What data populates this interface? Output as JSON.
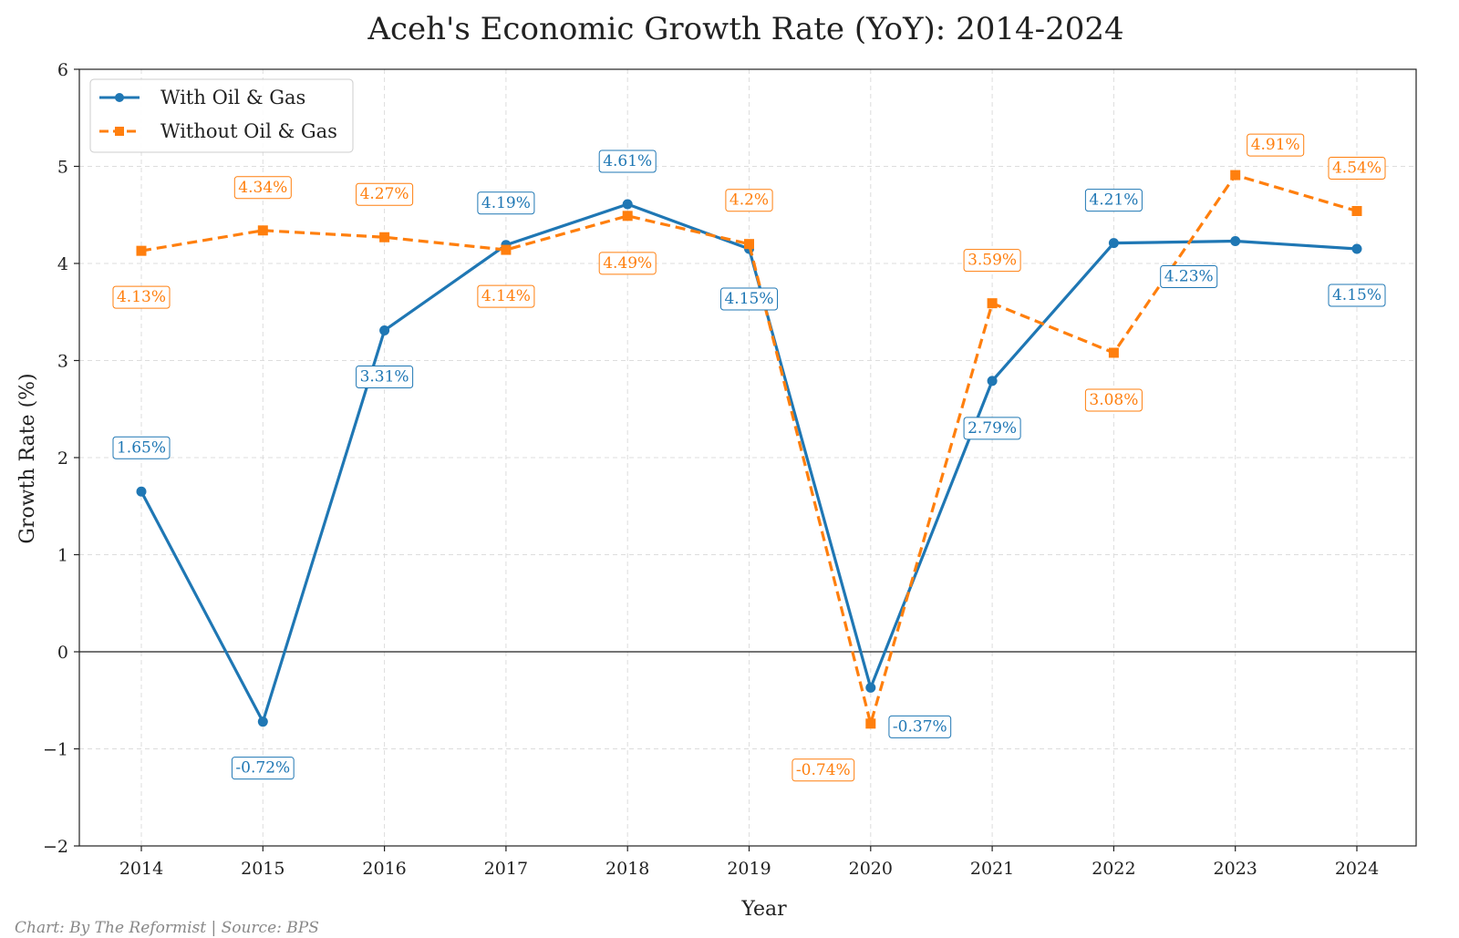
{
  "chart_data": {
    "type": "line",
    "title": "Aceh's Economic Growth Rate (YoY): 2014-2024",
    "xlabel": "Year",
    "ylabel": "Growth Rate (%)",
    "x": [
      "2014",
      "2015",
      "2016",
      "2017",
      "2018",
      "2019",
      "2020",
      "2021",
      "2022",
      "2023",
      "2024"
    ],
    "ylim": [
      -2,
      6
    ],
    "yticks": [
      -2,
      -1,
      0,
      1,
      2,
      3,
      4,
      5,
      6
    ],
    "ytick_labels": [
      "−2",
      "−1",
      "0",
      "1",
      "2",
      "3",
      "4",
      "5",
      "6"
    ],
    "grid": true,
    "legend_position": "top-left",
    "series": [
      {
        "name": "With Oil & Gas",
        "color": "#1f77b4",
        "style": "solid",
        "marker": "circle",
        "values": [
          1.65,
          -0.72,
          3.31,
          4.19,
          4.61,
          4.15,
          -0.37,
          2.79,
          4.21,
          4.23,
          4.15
        ],
        "labels": [
          "1.65%",
          "-0.72%",
          "3.31%",
          "4.19%",
          "4.61%",
          "4.15%",
          "-0.37%",
          "2.79%",
          "4.21%",
          "4.23%",
          "4.15%"
        ]
      },
      {
        "name": "Without Oil & Gas",
        "color": "#ff7f0e",
        "style": "dashed",
        "marker": "square",
        "values": [
          4.13,
          4.34,
          4.27,
          4.14,
          4.49,
          4.2,
          -0.74,
          3.59,
          3.08,
          4.91,
          4.54
        ],
        "labels": [
          "4.13%",
          "4.34%",
          "4.27%",
          "4.14%",
          "4.49%",
          "4.2%",
          "-0.74%",
          "3.59%",
          "3.08%",
          "4.91%",
          "4.54%"
        ]
      }
    ]
  },
  "footer": {
    "credit": "Chart: By The Reformist  |  Source: BPS"
  }
}
